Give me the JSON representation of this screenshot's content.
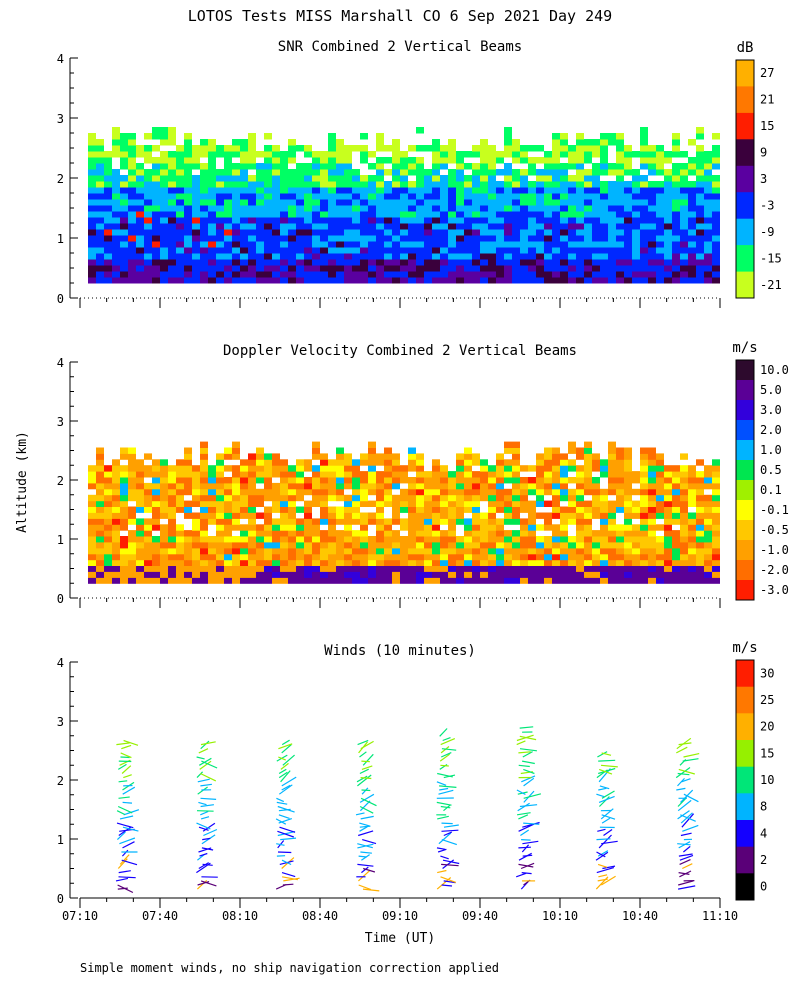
{
  "figure": {
    "title": "LOTOS Tests MISS Marshall CO   6 Sep 2021 Day 249",
    "y_axis_label": "Altitude (km)",
    "x_axis_label": "Time (UT)",
    "footnote": "Simple moment winds, no ship navigation correction applied",
    "time_ticks": [
      "07:10",
      "07:40",
      "08:10",
      "08:40",
      "09:10",
      "09:40",
      "10:10",
      "10:40",
      "11:10"
    ],
    "altitude_ticks": [
      "0",
      "1",
      "2",
      "3",
      "4"
    ]
  },
  "chart_data": [
    {
      "type": "heatmap",
      "title": "SNR Combined 2 Vertical Beams",
      "colorbar_unit": "dB",
      "colorbar_labels": [
        "27",
        "21",
        "15",
        "9",
        "3",
        "-3",
        "-9",
        "-15",
        "-21"
      ],
      "colorbar_colors": [
        "#ffb000",
        "#ff7800",
        "#ff1e00",
        "#3a003c",
        "#5a00a0",
        "#0028ff",
        "#00b4ff",
        "#00ff64",
        "#c8ff1e"
      ],
      "xlim": [
        "07:10",
        "11:10"
      ],
      "ylim": [
        0,
        4
      ],
      "data_extent": {
        "x_start": "07:10",
        "x_end": "11:10",
        "alt_min_km": 0.25,
        "alt_max_km": 2.8
      },
      "layers": [
        {
          "band_km": [
            0.25,
            1.6
          ],
          "dominant": "-3"
        },
        {
          "band_km": [
            0.9,
            2.1
          ],
          "dominant": "-9"
        },
        {
          "band_km": [
            1.8,
            2.4
          ],
          "dominant": "-15"
        },
        {
          "band_km": [
            2.2,
            2.8
          ],
          "dominant": "-21"
        }
      ],
      "grid": false
    },
    {
      "type": "heatmap",
      "title": "Doppler Velocity Combined 2 Vertical Beams",
      "colorbar_unit": "m/s",
      "colorbar_labels": [
        "10.0",
        "5.0",
        "3.0",
        "2.0",
        "1.0",
        "0.5",
        "0.1",
        "-0.1",
        "-0.5",
        "-1.0",
        "-2.0",
        "-3.0"
      ],
      "colorbar_colors": [
        "#2d0a2d",
        "#5a0096",
        "#3200dc",
        "#0050ff",
        "#00b4ff",
        "#00e650",
        "#a0f000",
        "#ffff00",
        "#ffc800",
        "#ffa000",
        "#ff6e00",
        "#ff1e00"
      ],
      "xlim": [
        "07:10",
        "11:10"
      ],
      "ylim": [
        0,
        4
      ],
      "data_extent": {
        "x_start": "07:10",
        "x_end": "11:10",
        "alt_min_km": 0.25,
        "alt_max_km": 2.7
      },
      "layers": [
        {
          "band_km": [
            0.4,
            2.6
          ],
          "dominant": "-0.5"
        },
        {
          "band_km": [
            0.25,
            0.45
          ],
          "dominant": "5.0"
        }
      ],
      "grid": false
    },
    {
      "type": "scatter",
      "title": "Winds (10 minutes)",
      "colorbar_unit": "m/s",
      "colorbar_labels": [
        "30",
        "25",
        "20",
        "15",
        "10",
        "8",
        "4",
        "2",
        "0"
      ],
      "colorbar_colors": [
        "#ff1e00",
        "#ff7800",
        "#ffb000",
        "#96f000",
        "#00e678",
        "#00b4ff",
        "#1400ff",
        "#5a0078",
        "#000000"
      ],
      "xlim": [
        "07:10",
        "11:10"
      ],
      "ylim": [
        0,
        4
      ],
      "profile_times": [
        "07:25",
        "07:55",
        "08:25",
        "08:55",
        "09:25",
        "09:55",
        "10:25",
        "10:55"
      ],
      "profile_top_km": [
        2.7,
        2.6,
        2.6,
        2.6,
        2.8,
        2.9,
        2.5,
        2.6
      ],
      "grid": false
    }
  ]
}
